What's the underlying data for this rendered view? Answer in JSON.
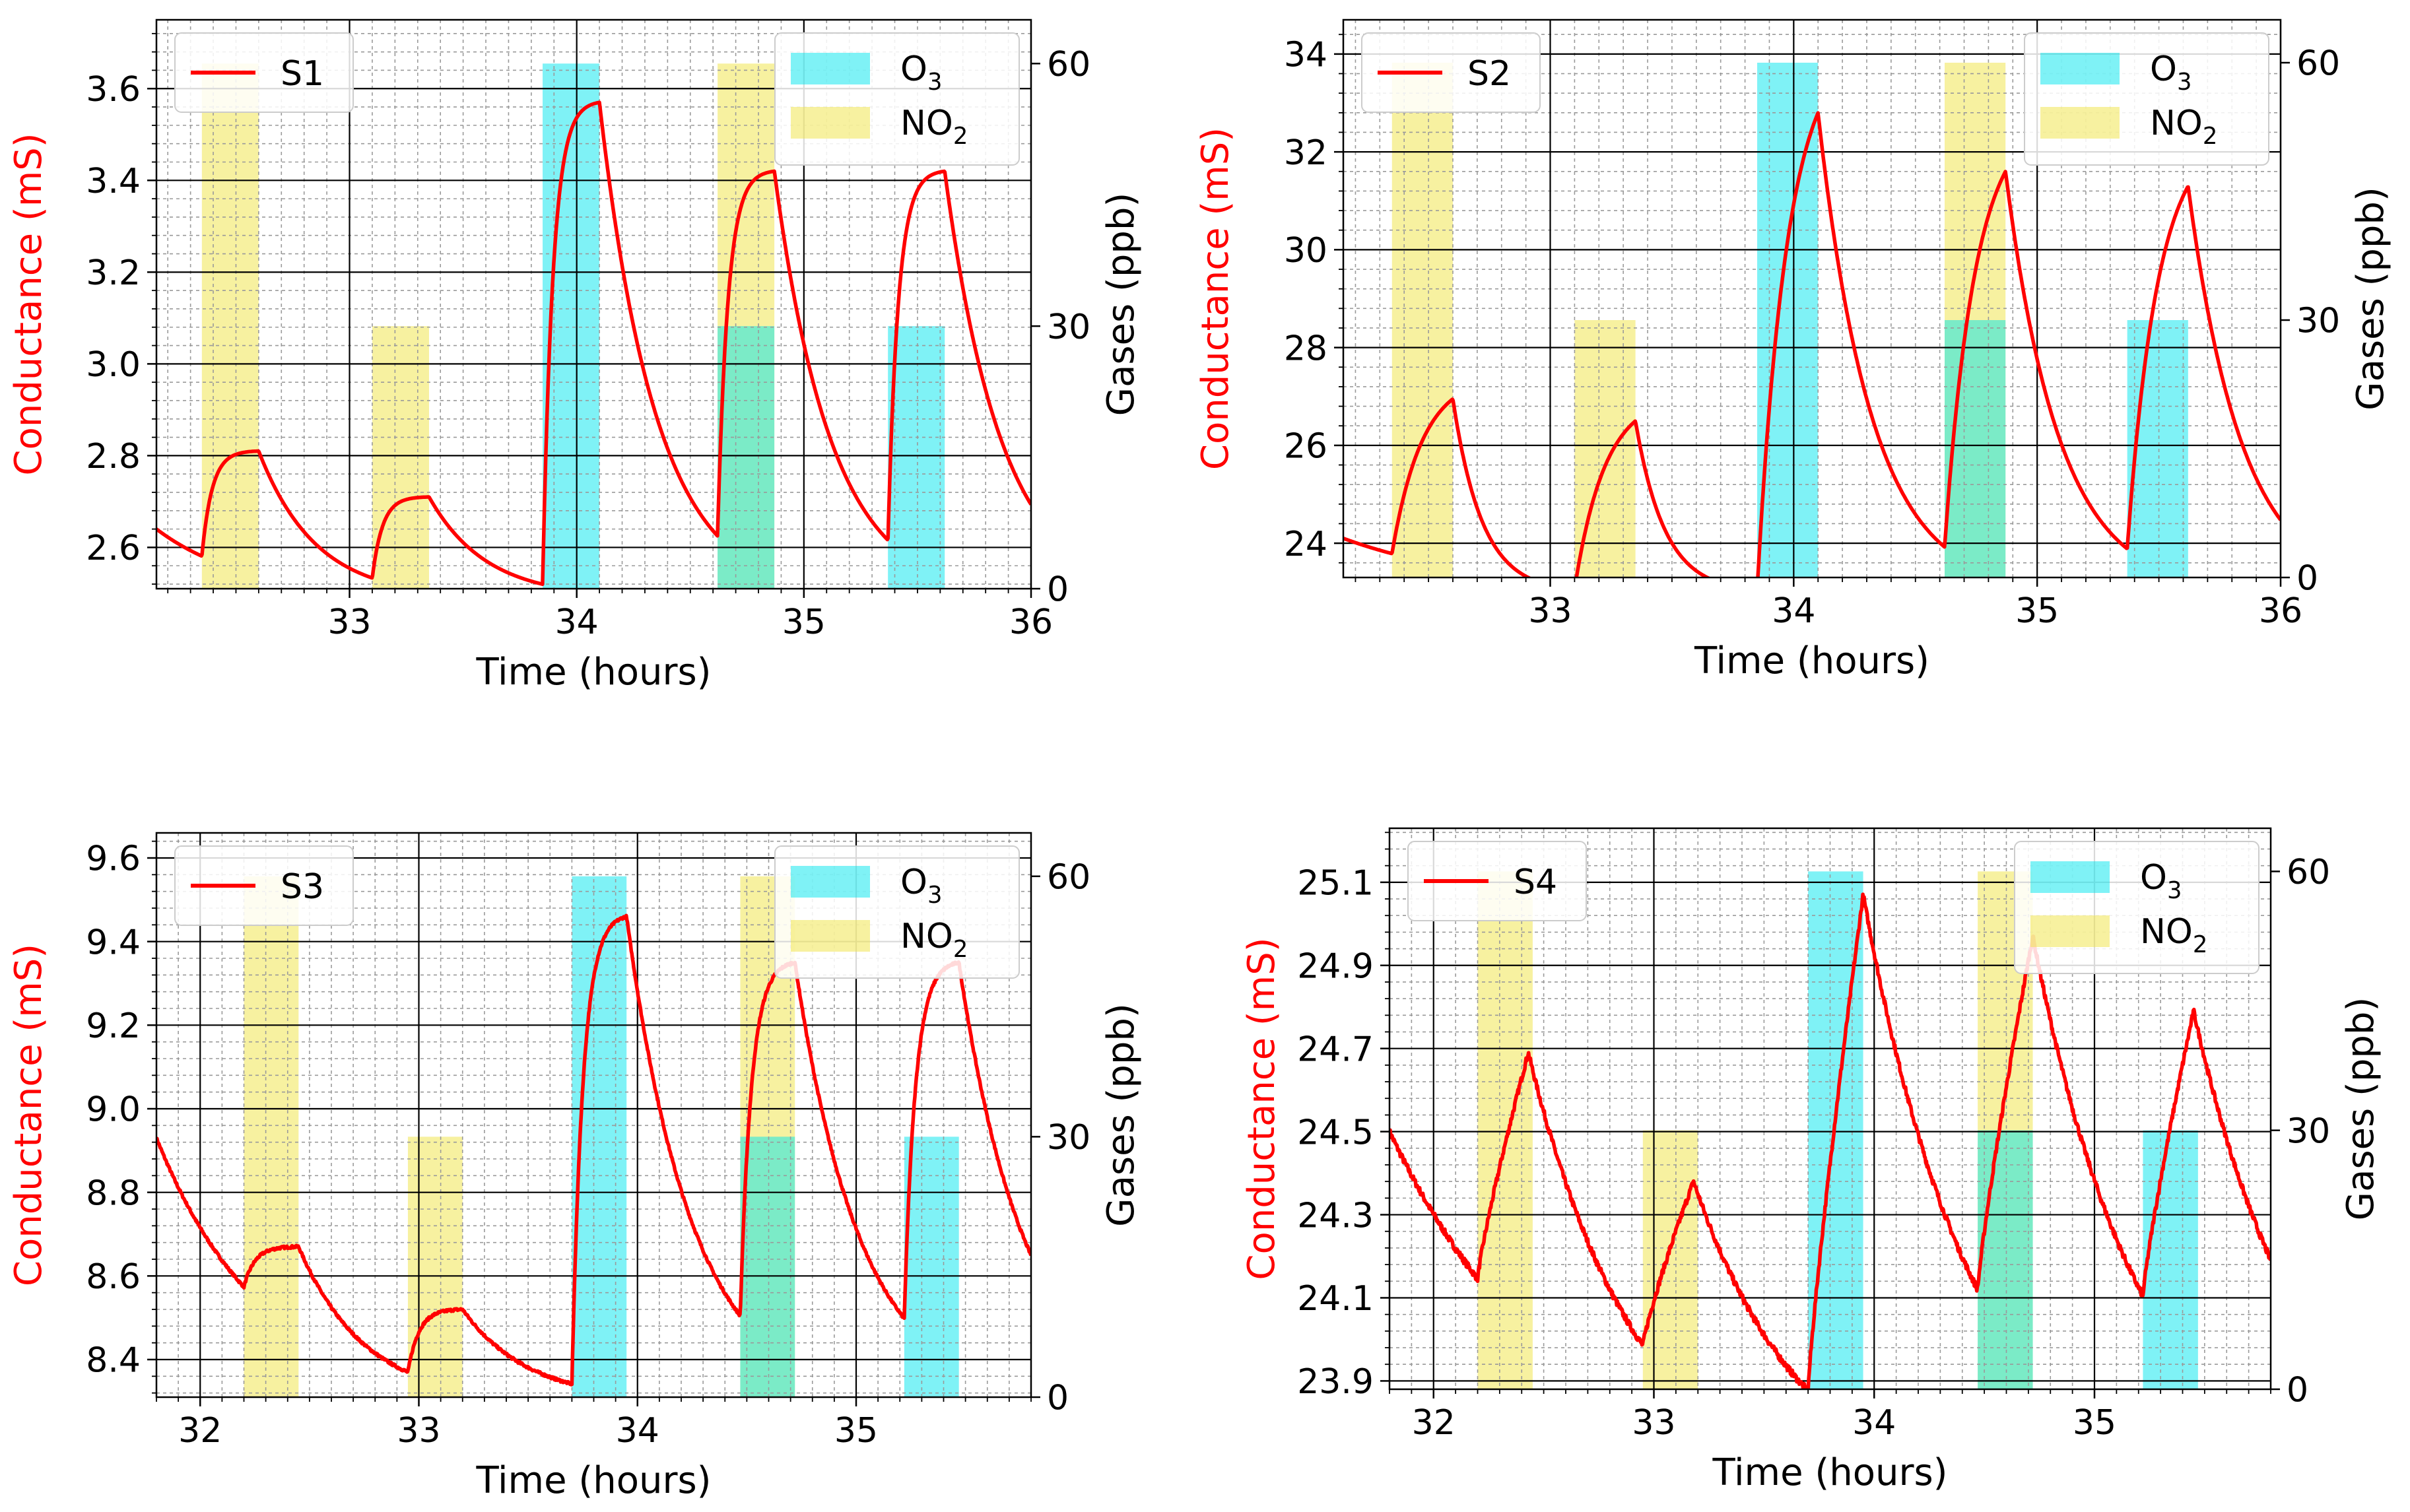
{
  "figure": {
    "common": {
      "xlabel": "Time (hours)",
      "ylabel_left": "Conductance (mS)",
      "ylabel_right": "Gases (ppb)",
      "right_ticks": [
        0,
        30,
        60
      ],
      "right_ylim": [
        0,
        65
      ],
      "legend_gas": [
        {
          "label": "O",
          "sub": "3",
          "color": "#00e5ee"
        },
        {
          "label": "NO",
          "sub": "2",
          "color": "#f0e442"
        }
      ],
      "colors": {
        "line": "#ff0000",
        "o3": "#00e5ee",
        "no2": "#f0e442",
        "grid_major": "#000000",
        "grid_minor": "#9a9a9a"
      }
    }
  },
  "chart_data": [
    {
      "type": "line",
      "title": "S1",
      "series_name": "S1",
      "xlim": [
        32.15,
        36.0
      ],
      "xticks": [
        33,
        34,
        35,
        36
      ],
      "ylim": [
        2.51,
        3.75
      ],
      "yticks": [
        2.6,
        2.8,
        3.0,
        3.2,
        3.4,
        3.6
      ],
      "ytick_labels": [
        "2.6",
        "2.8",
        "3.0",
        "3.2",
        "3.4",
        "3.6"
      ],
      "gas_pulses": [
        {
          "gas": "NO2",
          "start": 32.35,
          "end": 32.6,
          "ppb": 60
        },
        {
          "gas": "NO2",
          "start": 33.1,
          "end": 33.35,
          "ppb": 30
        },
        {
          "gas": "O3",
          "start": 33.85,
          "end": 34.1,
          "ppb": 60
        },
        {
          "gas": "NO2",
          "start": 34.62,
          "end": 34.87,
          "ppb": 60
        },
        {
          "gas": "O3",
          "start": 34.62,
          "end": 34.87,
          "ppb": 30
        },
        {
          "gas": "O3",
          "start": 35.37,
          "end": 35.62,
          "ppb": 30
        }
      ],
      "events": [
        {
          "start": 32.35,
          "end": 32.6,
          "peak": 2.81
        },
        {
          "start": 33.1,
          "end": 33.35,
          "peak": 2.71
        },
        {
          "start": 33.85,
          "end": 34.1,
          "peak": 3.57
        },
        {
          "start": 34.62,
          "end": 34.87,
          "peak": 3.42
        },
        {
          "start": 35.37,
          "end": 35.62,
          "peak": 3.42
        }
      ],
      "start_point": {
        "x": 32.15,
        "y": 2.64
      },
      "baseline": 2.49,
      "tau_decay": 0.25,
      "tau_rise": 0.18,
      "noise": 0
    },
    {
      "type": "line",
      "title": "S2",
      "series_name": "S2",
      "xlim": [
        32.15,
        36.0
      ],
      "xticks": [
        33,
        34,
        35,
        36
      ],
      "ylim": [
        23.3,
        34.7
      ],
      "yticks": [
        24,
        26,
        28,
        30,
        32,
        34
      ],
      "ytick_labels": [
        "24",
        "26",
        "28",
        "30",
        "32",
        "34"
      ],
      "gas_pulses": [
        {
          "gas": "NO2",
          "start": 32.35,
          "end": 32.6,
          "ppb": 60
        },
        {
          "gas": "NO2",
          "start": 33.1,
          "end": 33.35,
          "ppb": 30
        },
        {
          "gas": "O3",
          "start": 33.85,
          "end": 34.1,
          "ppb": 60
        },
        {
          "gas": "NO2",
          "start": 34.62,
          "end": 34.87,
          "ppb": 60
        },
        {
          "gas": "O3",
          "start": 34.62,
          "end": 34.87,
          "ppb": 30
        },
        {
          "gas": "O3",
          "start": 35.37,
          "end": 35.62,
          "ppb": 30
        }
      ],
      "events": [
        {
          "start": 32.35,
          "end": 32.6,
          "peak": 26.95
        },
        {
          "start": 33.1,
          "end": 33.35,
          "peak": 26.5
        },
        {
          "start": 33.85,
          "end": 34.1,
          "peak": 32.8
        },
        {
          "start": 34.62,
          "end": 34.87,
          "peak": 31.6
        },
        {
          "start": 35.37,
          "end": 35.62,
          "peak": 31.3
        }
      ],
      "start_point": {
        "x": 32.15,
        "y": 24.1
      },
      "baseline": 23.0,
      "tau_decay": 0.45,
      "tau_rise": 0.5,
      "decay_shape": [
        0.12,
        0.12,
        0.22,
        0.22,
        0.22
      ],
      "noise": 0
    },
    {
      "type": "line",
      "title": "S3",
      "series_name": "S3",
      "xlim": [
        31.8,
        35.8
      ],
      "xticks": [
        32,
        33,
        34,
        35
      ],
      "ylim": [
        8.31,
        9.66
      ],
      "yticks": [
        8.4,
        8.6,
        8.8,
        9.0,
        9.2,
        9.4,
        9.6
      ],
      "ytick_labels": [
        "8.4",
        "8.6",
        "8.8",
        "9.0",
        "9.2",
        "9.4",
        "9.6"
      ],
      "gas_pulses": [
        {
          "gas": "NO2",
          "start": 32.2,
          "end": 32.45,
          "ppb": 60
        },
        {
          "gas": "NO2",
          "start": 32.95,
          "end": 33.2,
          "ppb": 30
        },
        {
          "gas": "O3",
          "start": 33.7,
          "end": 33.95,
          "ppb": 60
        },
        {
          "gas": "NO2",
          "start": 34.47,
          "end": 34.72,
          "ppb": 60
        },
        {
          "gas": "O3",
          "start": 34.47,
          "end": 34.72,
          "ppb": 30
        },
        {
          "gas": "O3",
          "start": 35.22,
          "end": 35.47,
          "ppb": 30
        }
      ],
      "events": [
        {
          "start": 32.2,
          "end": 32.45,
          "peak": 8.67
        },
        {
          "start": 32.95,
          "end": 33.2,
          "peak": 8.52
        },
        {
          "start": 33.7,
          "end": 33.95,
          "peak": 9.46
        },
        {
          "start": 34.47,
          "end": 34.72,
          "peak": 9.35
        },
        {
          "start": 35.22,
          "end": 35.47,
          "peak": 9.35
        }
      ],
      "start_point": {
        "x": 31.8,
        "y": 8.93
      },
      "baseline": 8.3,
      "tau_decay": 0.3,
      "tau_rise": 0.2,
      "noise": 0.003
    },
    {
      "type": "line",
      "title": "S4",
      "series_name": "S4",
      "xlim": [
        31.8,
        35.8
      ],
      "xticks": [
        32,
        33,
        34,
        35
      ],
      "ylim": [
        23.88,
        25.23
      ],
      "yticks": [
        23.9,
        24.1,
        24.3,
        24.5,
        24.7,
        24.9,
        25.1
      ],
      "ytick_labels": [
        "23.9",
        "24.1",
        "24.3",
        "24.5",
        "24.7",
        "24.9",
        "25.1"
      ],
      "gas_pulses": [
        {
          "gas": "NO2",
          "start": 32.2,
          "end": 32.45,
          "ppb": 60
        },
        {
          "gas": "NO2",
          "start": 32.95,
          "end": 33.2,
          "ppb": 30
        },
        {
          "gas": "O3",
          "start": 33.7,
          "end": 33.95,
          "ppb": 60
        },
        {
          "gas": "NO2",
          "start": 34.47,
          "end": 34.72,
          "ppb": 60
        },
        {
          "gas": "O3",
          "start": 34.47,
          "end": 34.72,
          "ppb": 30
        },
        {
          "gas": "O3",
          "start": 35.22,
          "end": 35.47,
          "ppb": 30
        }
      ],
      "events": [
        {
          "start": 32.2,
          "end": 32.43,
          "peak": 24.69
        },
        {
          "start": 32.95,
          "end": 33.18,
          "peak": 24.38
        },
        {
          "start": 33.7,
          "end": 33.95,
          "peak": 25.07
        },
        {
          "start": 34.47,
          "end": 34.72,
          "peak": 24.97
        },
        {
          "start": 35.22,
          "end": 35.45,
          "peak": 24.79
        }
      ],
      "start_point": {
        "x": 31.8,
        "y": 24.5
      },
      "baseline": 23.6,
      "tau_decay": 0.5,
      "tau_rise": 0.2,
      "linear_rise": true,
      "noise": 0.008
    }
  ]
}
